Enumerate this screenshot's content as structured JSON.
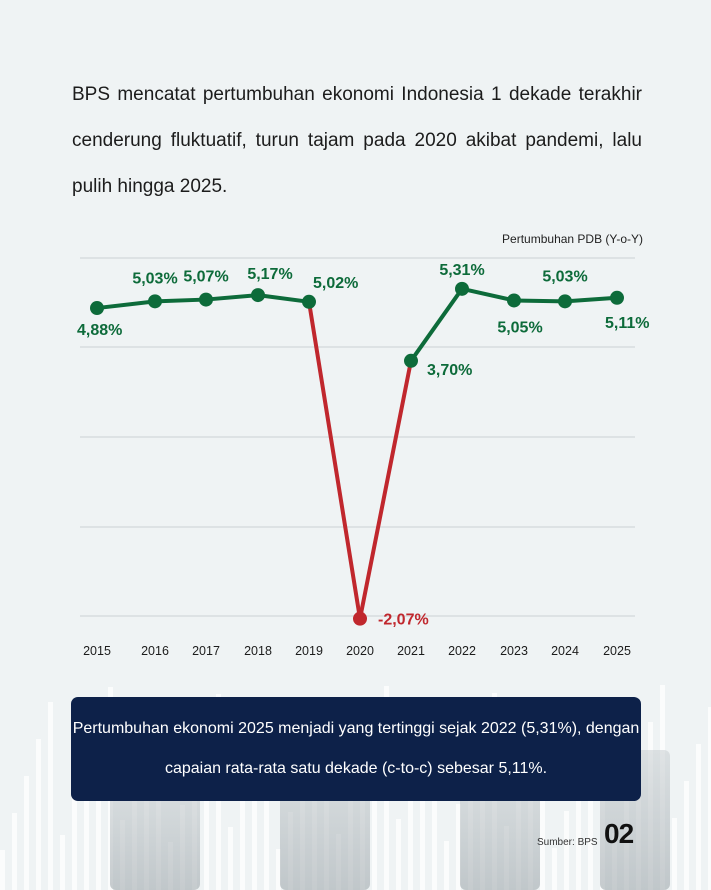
{
  "intro_text": "BPS mencatat pertumbuhan ekonomi Indonesia 1 dekade terakhir cenderung fluktuatif, turun tajam pada 2020 akibat pandemi, lalu pulih hingga 2025.",
  "chart_data": {
    "type": "line",
    "ylabel": "Pertumbuhan PDB (Y-o-Y)",
    "categories": [
      "2015",
      "2016",
      "2017",
      "2018",
      "2019",
      "2020",
      "2021",
      "2022",
      "2023",
      "2024",
      "2025"
    ],
    "values": [
      4.88,
      5.03,
      5.07,
      5.17,
      5.02,
      -2.07,
      3.7,
      5.31,
      5.05,
      5.03,
      5.11
    ],
    "data_labels": [
      "4,88%",
      "5,03%",
      "5,07%",
      "5,17%",
      "5,02%",
      "-2,07%",
      "3,70%",
      "5,31%",
      "5,05%",
      "5,03%",
      "5,11%"
    ],
    "ylim": [
      -2.1,
      6
    ],
    "grid": true,
    "colors": {
      "normal": "#0d6b3a",
      "decline": "#c0272d"
    }
  },
  "callout_text": "Pertumbuhan ekonomi 2025 menjadi yang tertinggi sejak 2022 (5,31%), dengan capaian rata-rata satu dekade (c-to-c) sebesar 5,11%.",
  "source": "Sumber: BPS",
  "page_number": "02"
}
